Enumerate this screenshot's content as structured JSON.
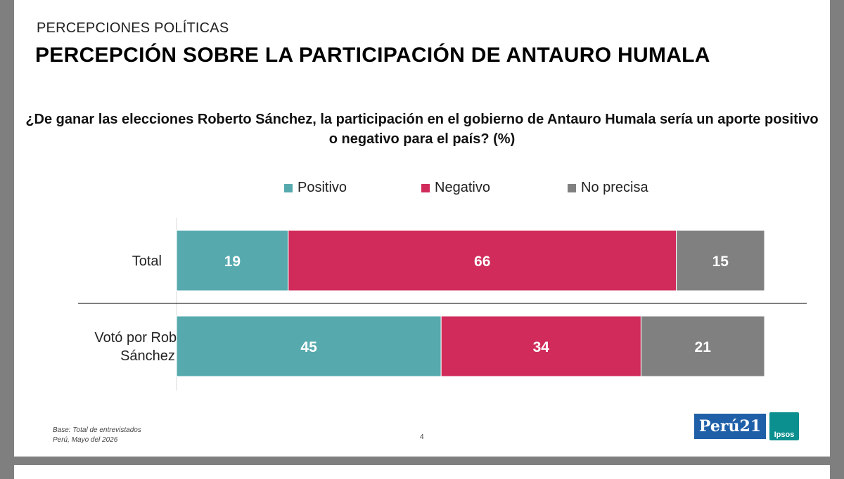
{
  "header": {
    "section": "PERCEPCIONES POLÍTICAS",
    "title": "PERCEPCIÓN SOBRE LA PARTICIPACIÓN DE ANTAURO HUMALA"
  },
  "chart_data": {
    "type": "bar",
    "orientation": "horizontal",
    "stacked": true,
    "title": "¿De ganar las elecciones Roberto Sánchez, la participación en el gobierno de Antauro Humala sería un aporte positivo o negativo para el país? (%)",
    "title_lines": [
      "¿De ganar las elecciones Roberto Sánchez, la participación en el gobierno de Antauro Humala sería un aporte positivo",
      "o negativo para el país? (%)"
    ],
    "categories": [
      "Total",
      "Votó por Roberto Sánchez"
    ],
    "category_lines": [
      [
        "Total"
      ],
      [
        "Votó por Roberto",
        "Sánchez"
      ]
    ],
    "series": [
      {
        "name": "Positivo",
        "color": "#56aaae",
        "values": [
          19,
          45
        ]
      },
      {
        "name": "Negativo",
        "color": "#d02b5a",
        "values": [
          66,
          34
        ]
      },
      {
        "name": "No precisa",
        "color": "#808080",
        "values": [
          15,
          21
        ]
      }
    ],
    "xlim": [
      0,
      100
    ],
    "legend_position": "top",
    "grid": false
  },
  "footer": {
    "base": "Base: Total de entrevistados",
    "place_date": "Perú, Mayo del 2026",
    "page": "4",
    "logo_peru21": "Perú21",
    "logo_ipsos": "Ipsos"
  }
}
